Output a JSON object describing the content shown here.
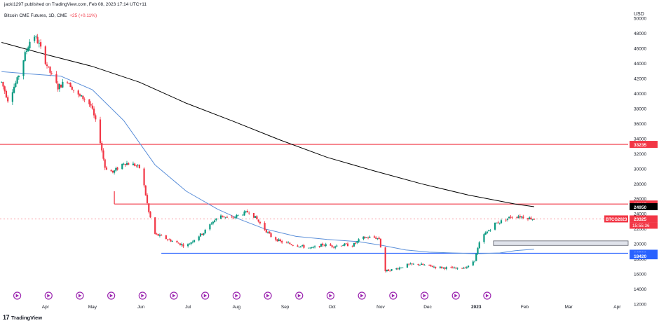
{
  "header": {
    "publish_line": "jacki1297 published on TradingView.com, Feb 08, 2023 17:14 UTC+11",
    "symbol": "Bitcoin CME Futures, 1D, CME",
    "change": "+25 (+0.11%)"
  },
  "footer": {
    "brand_mark": "17",
    "brand": "TradingView"
  },
  "chart_data": {
    "type": "candlestick",
    "currency": "USD",
    "ylim": [
      12000,
      51500
    ],
    "y_ticks": [
      12000,
      14000,
      16000,
      18000,
      20000,
      22000,
      24000,
      26000,
      28000,
      30000,
      32000,
      34000,
      36000,
      38000,
      40000,
      42000,
      44000,
      46000,
      48000,
      50000
    ],
    "x_labels": [
      {
        "label": "Apr",
        "day": 0
      },
      {
        "label": "May",
        "day": 30
      },
      {
        "label": "Jun",
        "day": 61
      },
      {
        "label": "Jul",
        "day": 91
      },
      {
        "label": "Aug",
        "day": 122
      },
      {
        "label": "Sep",
        "day": 153
      },
      {
        "label": "Oct",
        "day": 183
      },
      {
        "label": "Nov",
        "day": 214
      },
      {
        "label": "Dec",
        "day": 244
      },
      {
        "label": "2023",
        "day": 275
      },
      {
        "label": "Feb",
        "day": 306
      },
      {
        "label": "Mar",
        "day": 334
      },
      {
        "label": "Apr",
        "day": 365
      }
    ],
    "x_label_bold": "2023",
    "keyframes": [
      [
        -28,
        41500
      ],
      [
        -24,
        39200
      ],
      [
        -18,
        41800
      ],
      [
        -13,
        45200
      ],
      [
        -8,
        48100
      ],
      [
        -4,
        46500
      ],
      [
        2,
        43200
      ],
      [
        8,
        40800
      ],
      [
        14,
        41800
      ],
      [
        20,
        39800
      ],
      [
        25,
        39300
      ],
      [
        29,
        38400
      ],
      [
        34,
        34800
      ],
      [
        38,
        30200
      ],
      [
        43,
        29500
      ],
      [
        50,
        30800
      ],
      [
        57,
        30500
      ],
      [
        61,
        30000
      ],
      [
        66,
        24200
      ],
      [
        70,
        21300
      ],
      [
        76,
        20800
      ],
      [
        83,
        20200
      ],
      [
        90,
        19700
      ],
      [
        96,
        20800
      ],
      [
        101,
        21500
      ],
      [
        106,
        22800
      ],
      [
        112,
        23800
      ],
      [
        118,
        23300
      ],
      [
        124,
        23900
      ],
      [
        130,
        24300
      ],
      [
        134,
        23500
      ],
      [
        139,
        22200
      ],
      [
        144,
        21000
      ],
      [
        150,
        20300
      ],
      [
        156,
        20000
      ],
      [
        163,
        19700
      ],
      [
        170,
        19400
      ],
      [
        177,
        19900
      ],
      [
        184,
        19700
      ],
      [
        190,
        19900
      ],
      [
        196,
        19800
      ],
      [
        202,
        20800
      ],
      [
        209,
        20900
      ],
      [
        213,
        20700
      ],
      [
        217,
        16400
      ],
      [
        224,
        16700
      ],
      [
        231,
        17200
      ],
      [
        238,
        17300
      ],
      [
        244,
        17100
      ],
      [
        250,
        16900
      ],
      [
        257,
        16800
      ],
      [
        263,
        16700
      ],
      [
        270,
        17000
      ],
      [
        274,
        17900
      ],
      [
        278,
        20800
      ],
      [
        282,
        21600
      ],
      [
        287,
        22700
      ],
      [
        292,
        23100
      ],
      [
        297,
        23600
      ],
      [
        302,
        23700
      ],
      [
        307,
        23500
      ],
      [
        312,
        23325
      ]
    ],
    "series": [
      {
        "name": "Bitcoin CME Futures",
        "color_up": "#089981",
        "color_down": "#f23645"
      },
      {
        "color": "#000000",
        "points": [
          [
            -28,
            46800
          ],
          [
            0,
            45200
          ],
          [
            30,
            43600
          ],
          [
            60,
            41500
          ],
          [
            90,
            38700
          ],
          [
            120,
            36300
          ],
          [
            150,
            33800
          ],
          [
            180,
            31500
          ],
          [
            210,
            29700
          ],
          [
            240,
            28000
          ],
          [
            270,
            26500
          ],
          [
            300,
            25300
          ],
          [
            312,
            24950
          ]
        ]
      },
      {
        "color": "#5b8fd9",
        "points": [
          [
            -28,
            42900
          ],
          [
            -10,
            42600
          ],
          [
            10,
            42300
          ],
          [
            30,
            40500
          ],
          [
            50,
            36400
          ],
          [
            70,
            30500
          ],
          [
            90,
            27000
          ],
          [
            110,
            24600
          ],
          [
            125,
            23200
          ],
          [
            140,
            22000
          ],
          [
            160,
            21000
          ],
          [
            180,
            20600
          ],
          [
            200,
            20300
          ],
          [
            215,
            19800
          ],
          [
            230,
            19200
          ],
          [
            245,
            18900
          ],
          [
            260,
            18800
          ],
          [
            275,
            18700
          ],
          [
            290,
            18800
          ],
          [
            300,
            19100
          ],
          [
            312,
            19300
          ]
        ]
      }
    ],
    "hlines": [
      {
        "value": 33235,
        "color": "#f23645",
        "label": "33235"
      },
      {
        "value": 25305,
        "color": "#f23645",
        "label": "25305",
        "from_day": 44
      },
      {
        "value": 18760,
        "color": "#2962ff",
        "label": "18760",
        "from_day": 74
      },
      {
        "value": 18420,
        "label": "18420"
      }
    ],
    "zone": {
      "from_day": 286,
      "to_day": 372,
      "low": 19800,
      "high": 20400
    },
    "price_tags": [
      {
        "value": 24950,
        "label": "24950",
        "bg": "#000000"
      },
      {
        "value": 23325,
        "label": "23325",
        "bg": "#f23645"
      }
    ],
    "last_price": {
      "value": 23325,
      "symbol_tag": "BTCG2023",
      "countdown": "15:55:36"
    },
    "event_markers": {
      "day_from": -18,
      "day_step": 20,
      "count": 16
    },
    "x_range_days": [
      -29,
      372
    ]
  }
}
